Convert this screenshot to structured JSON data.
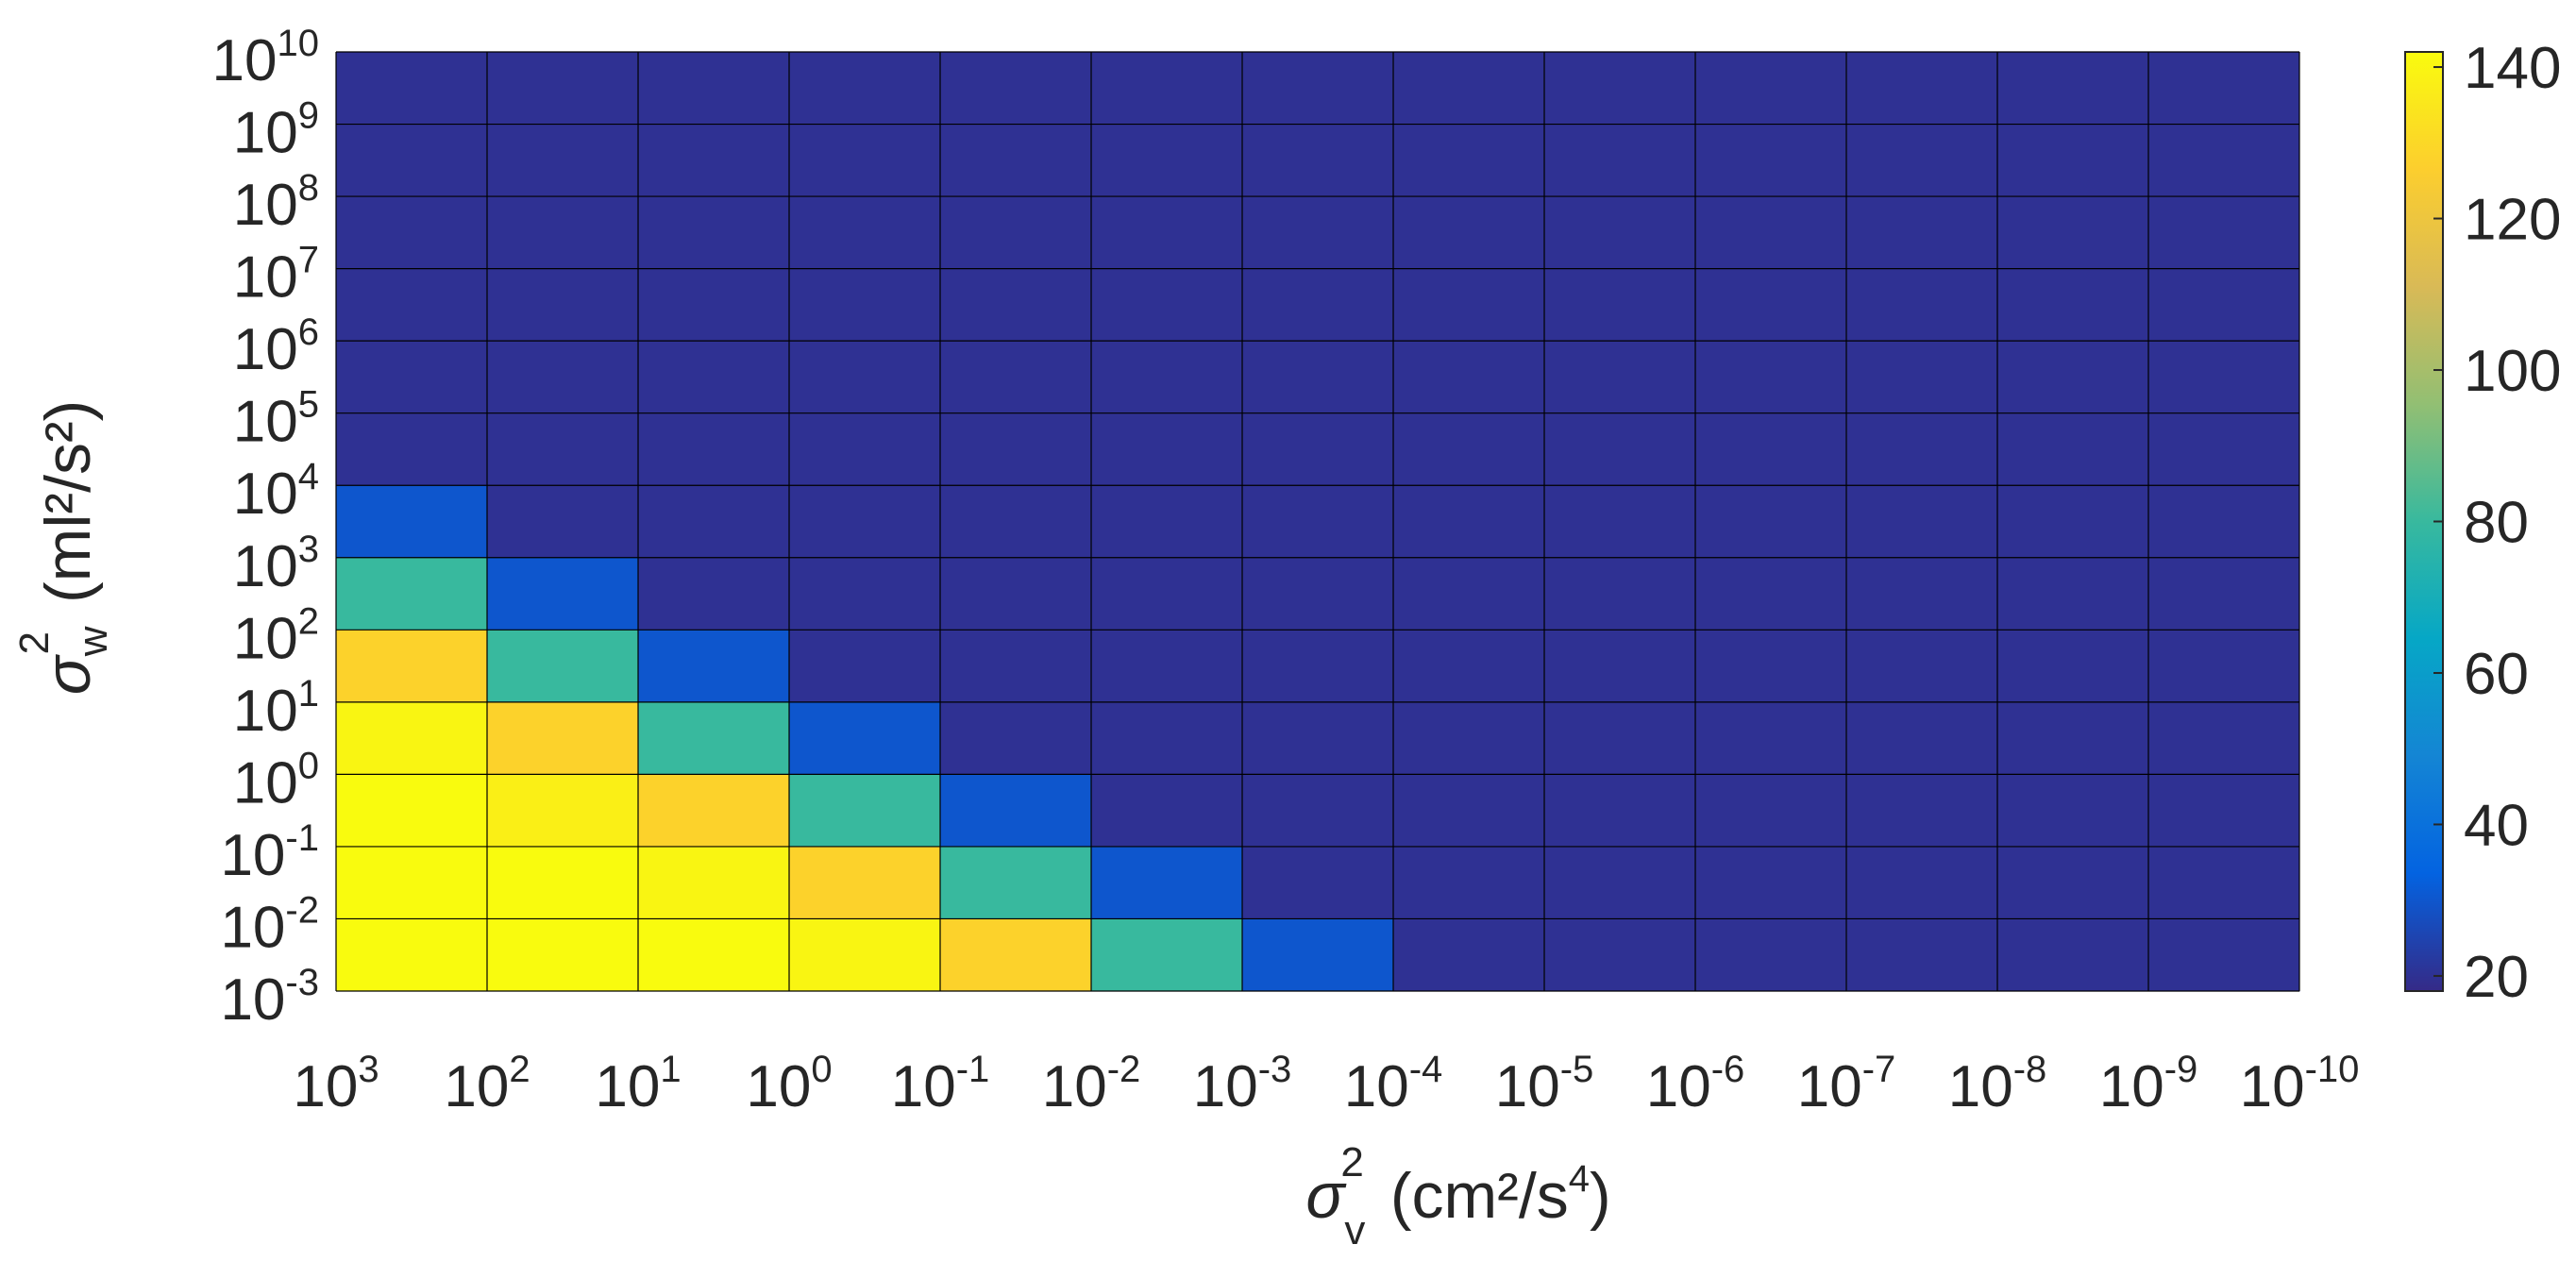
{
  "chart_data": {
    "type": "heatmap",
    "x_axis": {
      "label_symbol": "σ",
      "label_sup": "2",
      "label_sub": "v",
      "label_unit": "(cm²/s",
      "label_unit_sup": "4",
      "label_unit_close": ")",
      "tick_base": "10",
      "tick_exponents": [
        "3",
        "2",
        "1",
        "0",
        "-1",
        "-2",
        "-3",
        "-4",
        "-5",
        "-6",
        "-7",
        "-8",
        "-9",
        "-10"
      ]
    },
    "y_axis": {
      "label_symbol": "σ",
      "label_sup": "2",
      "label_sub": "w",
      "label_unit": "(ml²/s²)",
      "tick_base": "10",
      "tick_exponents": [
        "10",
        "9",
        "8",
        "7",
        "6",
        "5",
        "4",
        "3",
        "2",
        "1",
        "0",
        "-1",
        "-2",
        "-3"
      ]
    },
    "colorbar": {
      "colormap": "parula",
      "range": [
        18,
        142
      ],
      "ticks": [
        20,
        40,
        60,
        80,
        100,
        120,
        140
      ],
      "tick_labels": [
        "20",
        "40",
        "60",
        "80",
        "100",
        "120",
        "140"
      ]
    },
    "grid_lines": true,
    "rows_top_to_bottom": [
      [
        20,
        20,
        20,
        20,
        20,
        20,
        20,
        20,
        20,
        20,
        20,
        20,
        20
      ],
      [
        20,
        20,
        20,
        20,
        20,
        20,
        20,
        20,
        20,
        20,
        20,
        20,
        20
      ],
      [
        20,
        20,
        20,
        20,
        20,
        20,
        20,
        20,
        20,
        20,
        20,
        20,
        20
      ],
      [
        20,
        20,
        20,
        20,
        20,
        20,
        20,
        20,
        20,
        20,
        20,
        20,
        20
      ],
      [
        20,
        20,
        20,
        20,
        20,
        20,
        20,
        20,
        20,
        20,
        20,
        20,
        20
      ],
      [
        20,
        20,
        20,
        20,
        20,
        20,
        20,
        20,
        20,
        20,
        20,
        20,
        20
      ],
      [
        30,
        20,
        20,
        20,
        20,
        20,
        20,
        20,
        20,
        20,
        20,
        20,
        20
      ],
      [
        80,
        30,
        20,
        20,
        20,
        20,
        20,
        20,
        20,
        20,
        20,
        20,
        20
      ],
      [
        128,
        80,
        30,
        20,
        20,
        20,
        20,
        20,
        20,
        20,
        20,
        20,
        20
      ],
      [
        140,
        128,
        80,
        30,
        20,
        20,
        20,
        20,
        20,
        20,
        20,
        20,
        20
      ],
      [
        142,
        138,
        128,
        80,
        30,
        20,
        20,
        20,
        20,
        20,
        20,
        20,
        20
      ],
      [
        142,
        142,
        140,
        128,
        80,
        30,
        20,
        20,
        20,
        20,
        20,
        20,
        20
      ],
      [
        142,
        142,
        142,
        140,
        128,
        80,
        30,
        20,
        20,
        20,
        20,
        20,
        20
      ]
    ]
  }
}
